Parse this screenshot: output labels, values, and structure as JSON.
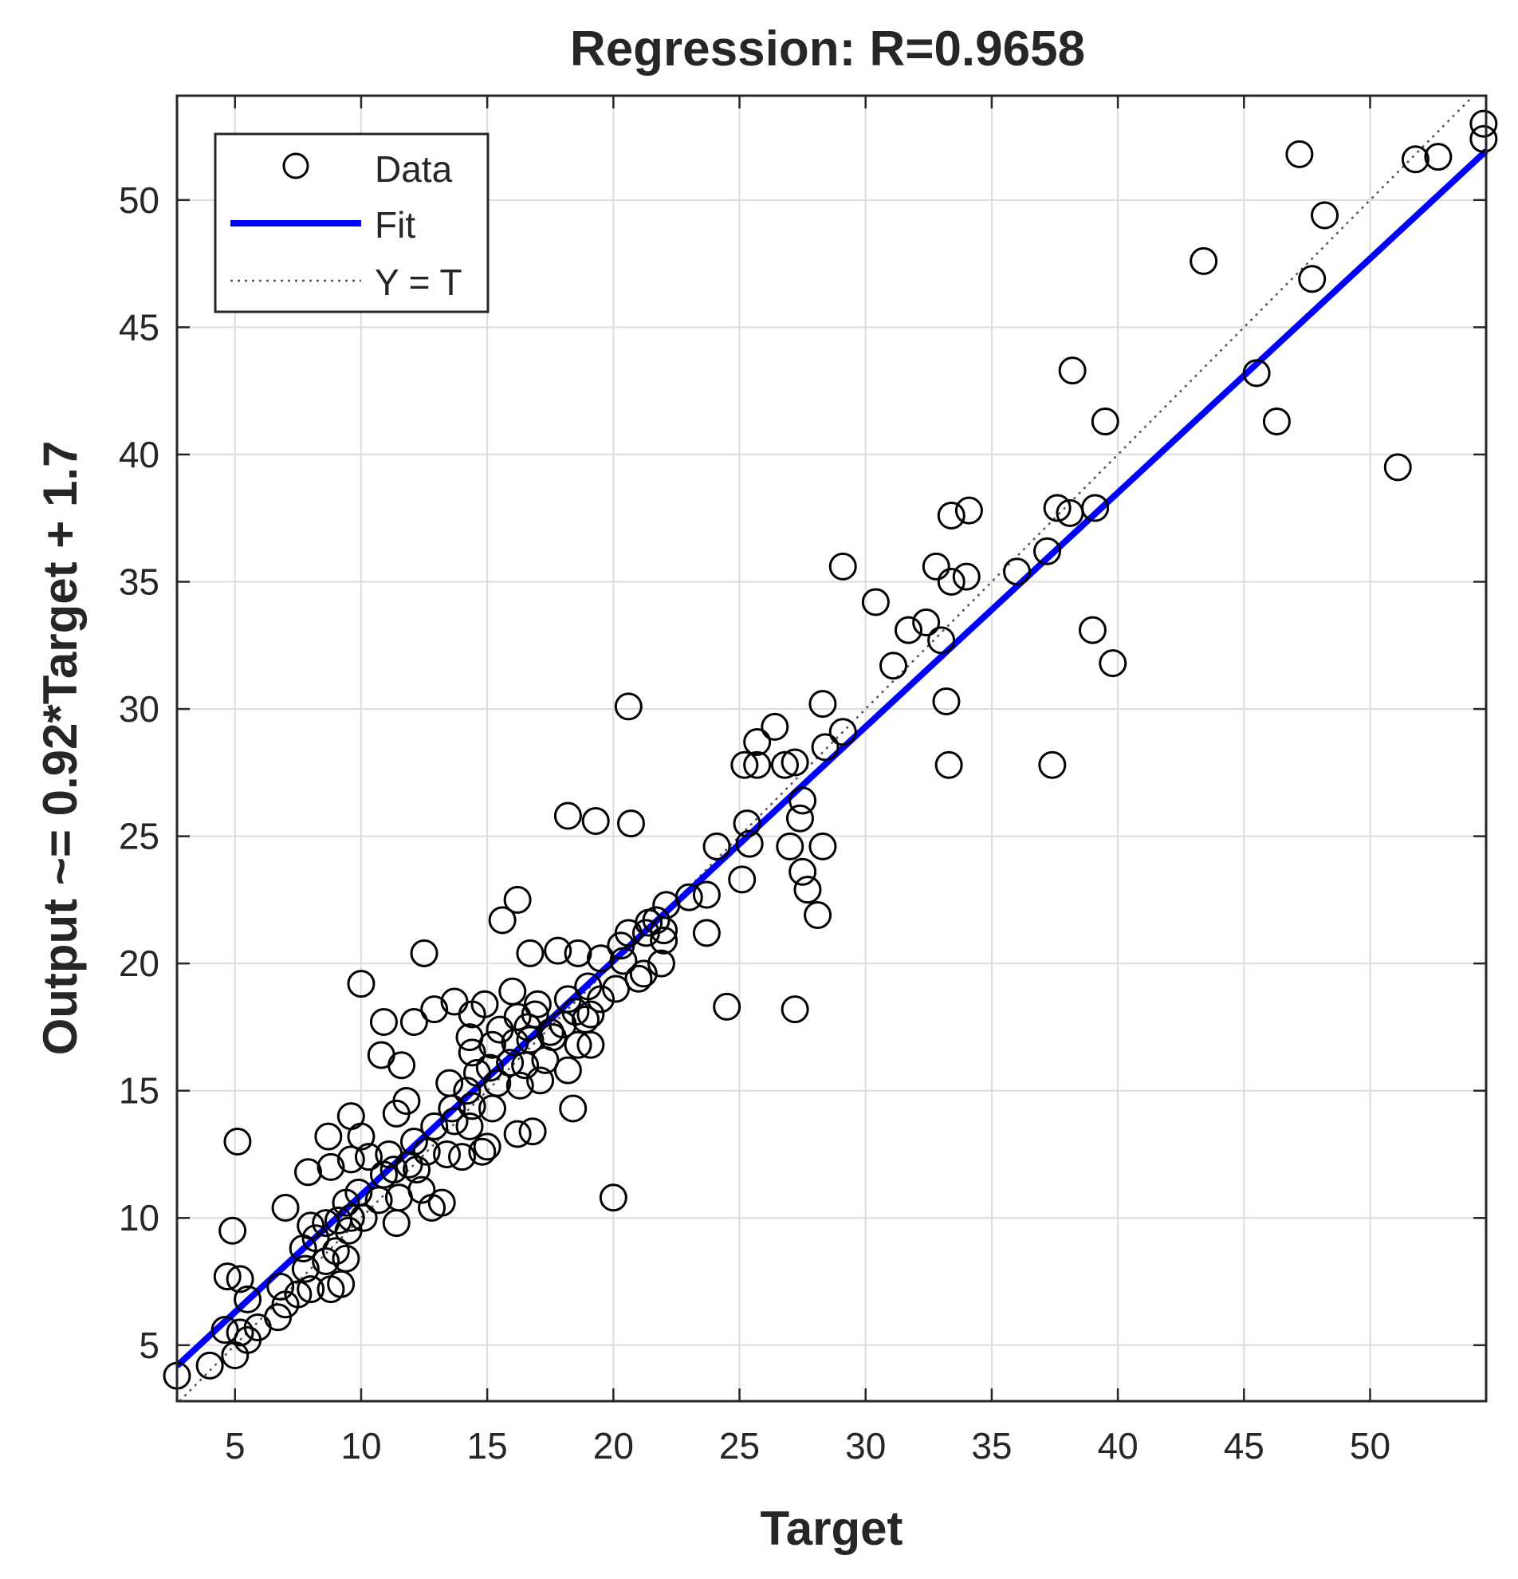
{
  "chart_data": {
    "type": "scatter",
    "title": "Regression: R=0.9658",
    "xlabel": "Target",
    "ylabel": "Output ~= 0.92*Target + 1.7",
    "xlim": [
      2.7,
      54.6
    ],
    "ylim": [
      2.8,
      54.1
    ],
    "xticks": [
      5,
      10,
      15,
      20,
      25,
      30,
      35,
      40,
      45,
      50
    ],
    "yticks": [
      5,
      10,
      15,
      20,
      25,
      30,
      35,
      40,
      45,
      50
    ],
    "xtick_labels": [
      "5",
      "10",
      "15",
      "20",
      "25",
      "30",
      "35",
      "40",
      "45",
      "50"
    ],
    "ytick_labels": [
      "5",
      "10",
      "15",
      "20",
      "25",
      "30",
      "35",
      "40",
      "45",
      "50"
    ],
    "grid": true,
    "legend": {
      "position": "top-left",
      "entries": [
        {
          "label": "Data",
          "style": "circle"
        },
        {
          "label": "Fit",
          "style": "line"
        },
        {
          "label": "Y = T",
          "style": "dotted"
        }
      ]
    },
    "fit": {
      "slope": 0.92,
      "intercept": 1.7,
      "color": "#0000ff"
    },
    "identity_line": {
      "color": "#555555"
    },
    "series": [
      {
        "name": "Data",
        "points": [
          [
            2.7,
            3.8
          ],
          [
            4.0,
            4.2
          ],
          [
            5.0,
            4.6
          ],
          [
            5.2,
            5.5
          ],
          [
            5.5,
            5.2
          ],
          [
            4.6,
            5.6
          ],
          [
            5.9,
            5.7
          ],
          [
            5.5,
            6.8
          ],
          [
            6.7,
            6.1
          ],
          [
            7.0,
            6.6
          ],
          [
            7.5,
            7.0
          ],
          [
            8.0,
            7.2
          ],
          [
            8.8,
            7.2
          ],
          [
            9.2,
            7.4
          ],
          [
            6.8,
            7.3
          ],
          [
            5.2,
            7.6
          ],
          [
            4.7,
            7.7
          ],
          [
            7.8,
            8.0
          ],
          [
            8.6,
            8.3
          ],
          [
            9.4,
            8.4
          ],
          [
            9.0,
            8.7
          ],
          [
            7.7,
            8.8
          ],
          [
            8.2,
            9.2
          ],
          [
            9.5,
            9.5
          ],
          [
            8.0,
            9.7
          ],
          [
            8.6,
            9.8
          ],
          [
            9.1,
            9.9
          ],
          [
            9.6,
            10.0
          ],
          [
            10.1,
            10.0
          ],
          [
            4.9,
            9.5
          ],
          [
            7.0,
            10.4
          ],
          [
            11.4,
            9.8
          ],
          [
            9.4,
            10.6
          ],
          [
            10.7,
            10.7
          ],
          [
            11.5,
            10.8
          ],
          [
            12.4,
            11.1
          ],
          [
            12.8,
            10.4
          ],
          [
            13.2,
            10.6
          ],
          [
            9.9,
            11.0
          ],
          [
            10.9,
            11.7
          ],
          [
            11.3,
            11.9
          ],
          [
            11.9,
            12.1
          ],
          [
            12.2,
            11.9
          ],
          [
            7.9,
            11.8
          ],
          [
            8.8,
            12.0
          ],
          [
            9.6,
            12.3
          ],
          [
            10.3,
            12.4
          ],
          [
            11.1,
            12.5
          ],
          [
            12.6,
            12.6
          ],
          [
            13.4,
            12.5
          ],
          [
            14.0,
            12.4
          ],
          [
            14.8,
            12.6
          ],
          [
            5.1,
            13.0
          ],
          [
            8.7,
            13.2
          ],
          [
            10.0,
            13.2
          ],
          [
            12.1,
            13.0
          ],
          [
            12.9,
            13.6
          ],
          [
            13.7,
            13.8
          ],
          [
            14.3,
            13.6
          ],
          [
            15.0,
            12.8
          ],
          [
            16.2,
            13.3
          ],
          [
            16.8,
            13.4
          ],
          [
            9.6,
            14.0
          ],
          [
            11.4,
            14.1
          ],
          [
            11.8,
            14.6
          ],
          [
            13.6,
            14.3
          ],
          [
            14.4,
            14.4
          ],
          [
            15.2,
            14.3
          ],
          [
            18.4,
            14.3
          ],
          [
            14.2,
            15.0
          ],
          [
            15.4,
            15.3
          ],
          [
            16.3,
            15.2
          ],
          [
            17.1,
            15.4
          ],
          [
            13.5,
            15.3
          ],
          [
            14.6,
            15.7
          ],
          [
            15.1,
            15.9
          ],
          [
            15.9,
            16.1
          ],
          [
            16.5,
            16.0
          ],
          [
            17.3,
            16.2
          ],
          [
            18.2,
            15.8
          ],
          [
            10.8,
            16.4
          ],
          [
            11.6,
            16.0
          ],
          [
            14.4,
            16.5
          ],
          [
            15.2,
            16.8
          ],
          [
            16.1,
            16.9
          ],
          [
            16.7,
            17.0
          ],
          [
            17.6,
            17.1
          ],
          [
            18.6,
            16.8
          ],
          [
            19.1,
            16.8
          ],
          [
            14.3,
            17.1
          ],
          [
            15.5,
            17.4
          ],
          [
            16.6,
            17.5
          ],
          [
            17.5,
            17.3
          ],
          [
            18.0,
            17.6
          ],
          [
            18.9,
            17.8
          ],
          [
            10.9,
            17.7
          ],
          [
            12.1,
            17.7
          ],
          [
            14.4,
            18.0
          ],
          [
            16.2,
            17.9
          ],
          [
            16.9,
            18.0
          ],
          [
            18.5,
            18.1
          ],
          [
            19.1,
            18.0
          ],
          [
            12.9,
            18.2
          ],
          [
            13.7,
            18.5
          ],
          [
            14.9,
            18.4
          ],
          [
            17.0,
            18.4
          ],
          [
            18.2,
            18.6
          ],
          [
            19.5,
            18.6
          ],
          [
            16.0,
            18.9
          ],
          [
            19.0,
            19.1
          ],
          [
            20.1,
            19.0
          ],
          [
            10.0,
            19.2
          ],
          [
            21.0,
            19.4
          ],
          [
            21.2,
            19.6
          ],
          [
            21.9,
            20.0
          ],
          [
            20.4,
            20.1
          ],
          [
            19.5,
            20.2
          ],
          [
            12.5,
            20.4
          ],
          [
            16.7,
            20.4
          ],
          [
            17.8,
            20.5
          ],
          [
            18.6,
            20.4
          ],
          [
            20.3,
            20.7
          ],
          [
            22.0,
            20.9
          ],
          [
            23.7,
            21.2
          ],
          [
            20.6,
            21.2
          ],
          [
            21.3,
            21.2
          ],
          [
            22.0,
            21.3
          ],
          [
            21.4,
            21.6
          ],
          [
            21.7,
            21.7
          ],
          [
            15.6,
            21.7
          ],
          [
            22.1,
            22.3
          ],
          [
            23.0,
            22.6
          ],
          [
            23.7,
            22.7
          ],
          [
            16.2,
            22.5
          ],
          [
            25.1,
            23.3
          ],
          [
            27.5,
            23.6
          ],
          [
            27.7,
            22.9
          ],
          [
            28.1,
            21.9
          ],
          [
            24.5,
            18.3
          ],
          [
            27.2,
            18.2
          ],
          [
            18.2,
            25.8
          ],
          [
            19.3,
            25.6
          ],
          [
            20.7,
            25.5
          ],
          [
            24.1,
            24.6
          ],
          [
            25.4,
            24.7
          ],
          [
            25.3,
            25.5
          ],
          [
            27.0,
            24.6
          ],
          [
            28.3,
            24.6
          ],
          [
            27.4,
            25.7
          ],
          [
            27.5,
            26.4
          ],
          [
            25.2,
            27.8
          ],
          [
            25.7,
            27.8
          ],
          [
            26.8,
            27.8
          ],
          [
            27.2,
            27.9
          ],
          [
            25.7,
            28.7
          ],
          [
            26.4,
            29.3
          ],
          [
            28.4,
            28.5
          ],
          [
            29.1,
            29.1
          ],
          [
            28.3,
            30.2
          ],
          [
            20.6,
            30.1
          ],
          [
            20.0,
            10.8
          ],
          [
            31.1,
            31.7
          ],
          [
            31.7,
            33.1
          ],
          [
            32.4,
            33.4
          ],
          [
            33.0,
            32.7
          ],
          [
            33.2,
            30.3
          ],
          [
            33.3,
            27.8
          ],
          [
            30.4,
            34.2
          ],
          [
            29.1,
            35.6
          ],
          [
            32.8,
            35.6
          ],
          [
            33.4,
            35.0
          ],
          [
            34.0,
            35.2
          ],
          [
            33.4,
            37.6
          ],
          [
            34.1,
            37.8
          ],
          [
            36.0,
            35.4
          ],
          [
            37.2,
            36.2
          ],
          [
            37.6,
            37.9
          ],
          [
            38.1,
            37.7
          ],
          [
            39.1,
            37.9
          ],
          [
            38.2,
            43.3
          ],
          [
            39.5,
            41.3
          ],
          [
            39.0,
            33.1
          ],
          [
            39.8,
            31.8
          ],
          [
            37.4,
            27.8
          ],
          [
            43.4,
            47.6
          ],
          [
            45.5,
            43.2
          ],
          [
            46.3,
            41.3
          ],
          [
            47.2,
            51.8
          ],
          [
            47.7,
            46.9
          ],
          [
            48.2,
            49.4
          ],
          [
            51.1,
            39.5
          ],
          [
            51.8,
            51.6
          ],
          [
            52.7,
            51.7
          ],
          [
            54.5,
            52.4
          ],
          [
            54.5,
            53.0
          ]
        ]
      }
    ]
  }
}
